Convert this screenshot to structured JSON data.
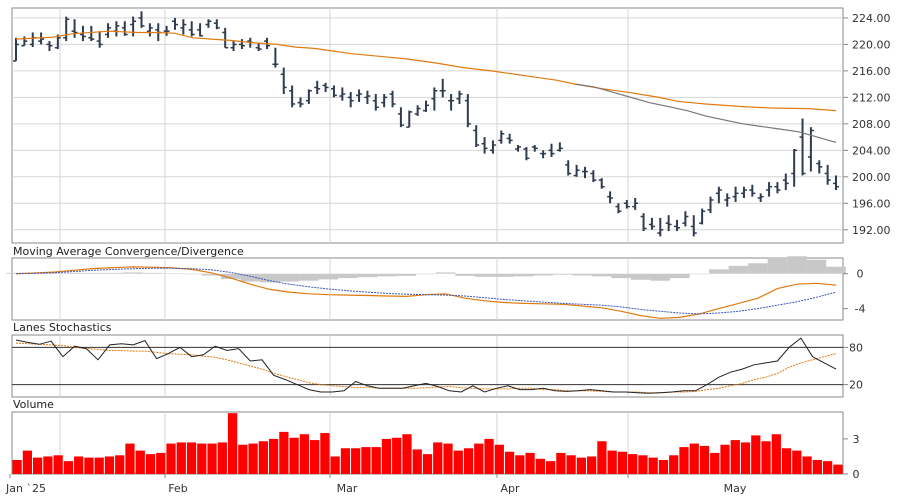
{
  "colors": {
    "price_bar": "#2f3b4f",
    "ma_orange": "#e07a10",
    "ma_gray": "#777777",
    "macd_line": "#e07a10",
    "signal_line": "#3a56b5",
    "histogram": "#c8c8c8",
    "stoch_k": "#222222",
    "stoch_d": "#e07a10",
    "volume_bar": "#ff0000",
    "grid": "#d6d6d6",
    "axis": "#333333"
  },
  "chart_data": [
    {
      "panel": "price",
      "type": "ohlc",
      "title": "",
      "ylim": [
        190,
        225.5
      ],
      "ticks": [
        "224.00",
        "220.00",
        "216.00",
        "212.00",
        "208.00",
        "204.00",
        "200.00",
        "196.00",
        "192.00"
      ],
      "tick_values": [
        224,
        220,
        216,
        212,
        208,
        204,
        200,
        196,
        192
      ],
      "bars": [
        [
          217.5,
          221.0,
          217.5,
          220.0
        ],
        [
          219.8,
          221.2,
          219.8,
          220.5
        ],
        [
          220.0,
          221.8,
          219.6,
          221.0
        ],
        [
          220.5,
          221.8,
          220.0,
          220.8
        ],
        [
          220.0,
          220.5,
          219.0,
          219.8
        ],
        [
          219.5,
          221.5,
          219.3,
          221.0
        ],
        [
          221.0,
          224.2,
          220.5,
          223.8
        ],
        [
          222.0,
          223.8,
          221.0,
          221.8
        ],
        [
          221.5,
          222.8,
          220.5,
          221.2
        ],
        [
          221.0,
          222.8,
          220.5,
          220.8
        ],
        [
          220.5,
          222.0,
          219.5,
          220.0
        ],
        [
          221.5,
          223.2,
          221.0,
          222.5
        ],
        [
          222.0,
          223.5,
          221.2,
          222.8
        ],
        [
          222.5,
          223.5,
          221.3,
          221.5
        ],
        [
          223.0,
          224.2,
          221.2,
          223.5
        ],
        [
          224.0,
          225.0,
          222.5,
          222.8
        ],
        [
          222.0,
          223.2,
          221.2,
          222.5
        ],
        [
          222.2,
          223.2,
          220.5,
          221.8
        ],
        [
          222.0,
          222.8,
          221.3,
          222.0
        ],
        [
          223.5,
          224.0,
          222.2,
          223.0
        ],
        [
          222.5,
          223.8,
          221.5,
          223.0
        ],
        [
          222.2,
          223.5,
          221.2,
          221.5
        ],
        [
          222.2,
          223.2,
          221.2,
          221.3
        ],
        [
          223.0,
          223.8,
          222.5,
          223.5
        ],
        [
          223.2,
          223.8,
          222.3,
          222.5
        ],
        [
          221.8,
          222.5,
          219.5,
          219.5
        ],
        [
          219.5,
          220.5,
          219.0,
          220.0
        ],
        [
          220.0,
          220.8,
          219.3,
          219.8
        ],
        [
          220.5,
          221.0,
          219.5,
          220.3
        ],
        [
          219.5,
          220.2,
          219.0,
          219.3
        ],
        [
          220.5,
          221.0,
          219.3,
          219.8
        ],
        [
          217.0,
          219.5,
          216.5,
          217.0
        ],
        [
          215.5,
          216.5,
          212.5,
          213.5
        ],
        [
          213.0,
          213.8,
          210.5,
          211.0
        ],
        [
          211.2,
          212.0,
          210.5,
          211.0
        ],
        [
          211.5,
          213.2,
          211.0,
          213.0
        ],
        [
          213.5,
          214.5,
          212.5,
          213.3
        ],
        [
          213.8,
          214.2,
          212.8,
          213.5
        ],
        [
          213.3,
          213.8,
          212.0,
          212.3
        ],
        [
          212.2,
          213.5,
          211.5,
          212.5
        ],
        [
          212.0,
          212.8,
          210.5,
          211.5
        ],
        [
          212.3,
          213.2,
          211.3,
          212.5
        ],
        [
          212.0,
          213.0,
          211.0,
          212.2
        ],
        [
          211.5,
          212.5,
          210.0,
          210.5
        ],
        [
          211.2,
          212.5,
          210.5,
          212.0
        ],
        [
          212.5,
          213.0,
          210.5,
          211.0
        ],
        [
          209.5,
          210.5,
          207.5,
          207.8
        ],
        [
          207.5,
          210.0,
          207.5,
          209.8
        ],
        [
          209.5,
          210.8,
          209.2,
          210.3
        ],
        [
          210.0,
          211.5,
          209.8,
          210.8
        ],
        [
          211.8,
          213.5,
          210.0,
          213.0
        ],
        [
          213.0,
          214.8,
          212.0,
          213.0
        ],
        [
          211.5,
          212.5,
          210.0,
          211.5
        ],
        [
          211.8,
          213.0,
          211.0,
          212.5
        ],
        [
          211.5,
          212.5,
          207.5,
          208.0
        ],
        [
          207.0,
          207.8,
          204.5,
          204.8
        ],
        [
          205.0,
          206.0,
          203.5,
          204.3
        ],
        [
          204.0,
          205.5,
          203.5,
          204.8
        ],
        [
          205.5,
          207.0,
          205.0,
          206.5
        ],
        [
          205.8,
          206.5,
          205.0,
          205.5
        ],
        [
          204.2,
          204.8,
          203.8,
          204.5
        ],
        [
          204.2,
          204.5,
          202.5,
          202.8
        ],
        [
          204.5,
          204.8,
          203.8,
          204.3
        ],
        [
          203.5,
          204.0,
          202.8,
          203.5
        ],
        [
          204.0,
          205.0,
          203.0,
          203.5
        ],
        [
          204.0,
          205.2,
          203.8,
          204.3
        ],
        [
          201.8,
          202.5,
          200.2,
          200.5
        ],
        [
          200.2,
          201.8,
          200.0,
          201.0
        ],
        [
          200.8,
          201.5,
          199.8,
          200.8
        ],
        [
          200.5,
          201.0,
          199.2,
          199.5
        ],
        [
          199.5,
          199.8,
          198.2,
          198.5
        ],
        [
          197.0,
          197.8,
          196.0,
          196.8
        ],
        [
          195.5,
          196.0,
          194.5,
          194.8
        ],
        [
          196.0,
          196.5,
          195.2,
          195.5
        ],
        [
          195.5,
          196.8,
          195.0,
          196.0
        ],
        [
          194.0,
          194.5,
          191.8,
          192.2
        ],
        [
          192.8,
          193.8,
          192.0,
          192.5
        ],
        [
          191.5,
          193.8,
          191.0,
          192.0
        ],
        [
          193.0,
          194.2,
          191.8,
          192.8
        ],
        [
          192.5,
          193.5,
          191.8,
          192.3
        ],
        [
          193.0,
          194.8,
          192.5,
          194.0
        ],
        [
          192.5,
          194.2,
          191.0,
          191.5
        ],
        [
          193.0,
          195.2,
          192.8,
          194.8
        ],
        [
          195.0,
          197.0,
          194.5,
          196.5
        ],
        [
          197.5,
          198.5,
          196.0,
          198.0
        ],
        [
          196.5,
          197.5,
          195.5,
          196.8
        ],
        [
          197.0,
          198.5,
          196.2,
          197.5
        ],
        [
          197.5,
          198.5,
          196.8,
          198.0
        ],
        [
          198.0,
          198.8,
          197.0,
          197.5
        ],
        [
          196.8,
          197.5,
          196.2,
          197.0
        ],
        [
          198.0,
          199.2,
          197.0,
          198.5
        ],
        [
          198.5,
          199.2,
          197.5,
          198.0
        ],
        [
          199.5,
          200.5,
          198.0,
          199.0
        ],
        [
          200.5,
          204.2,
          198.5,
          204.0
        ],
        [
          206.0,
          208.8,
          200.2,
          200.5
        ],
        [
          203.0,
          207.5,
          200.8,
          207.0
        ],
        [
          202.0,
          202.5,
          200.5,
          201.5
        ],
        [
          200.5,
          201.8,
          198.8,
          199.5
        ],
        [
          199.0,
          200.2,
          198.0,
          198.5
        ]
      ],
      "ma_orange": [
        [
          0,
          220.8
        ],
        [
          0.08,
          221.1
        ],
        [
          0.12,
          221.6
        ],
        [
          0.2,
          222.0
        ],
        [
          0.26,
          221.8
        ],
        [
          0.3,
          221.8
        ],
        [
          0.34,
          221.7
        ],
        [
          0.38,
          221.0
        ],
        [
          0.42,
          220.8
        ],
        [
          0.46,
          220.6
        ],
        [
          0.5,
          220.3
        ],
        [
          0.56,
          220.0
        ],
        [
          0.6,
          219.6
        ],
        [
          0.64,
          219.4
        ],
        [
          0.68,
          219.0
        ],
        [
          0.72,
          218.6
        ],
        [
          0.78,
          218.2
        ],
        [
          0.84,
          217.8
        ],
        [
          0.9,
          217.2
        ],
        [
          0.96,
          216.5
        ],
        [
          1.02,
          216.0
        ],
        [
          1.1,
          215.2
        ],
        [
          1.16,
          214.6
        ],
        [
          1.2,
          214.0
        ],
        [
          1.26,
          213.3
        ],
        [
          1.32,
          212.7
        ],
        [
          1.38,
          212.0
        ],
        [
          1.42,
          211.4
        ],
        [
          1.48,
          211.0
        ],
        [
          1.56,
          210.6
        ],
        [
          1.62,
          210.4
        ],
        [
          1.7,
          210.3
        ],
        [
          1.76,
          210.0
        ]
      ],
      "ma_gray": [
        [
          1.2,
          214.0
        ],
        [
          1.24,
          213.6
        ],
        [
          1.28,
          212.8
        ],
        [
          1.32,
          212.0
        ],
        [
          1.36,
          211.2
        ],
        [
          1.4,
          210.6
        ],
        [
          1.44,
          210.0
        ],
        [
          1.48,
          209.2
        ],
        [
          1.52,
          208.6
        ],
        [
          1.56,
          208.0
        ],
        [
          1.6,
          207.6
        ],
        [
          1.64,
          207.2
        ],
        [
          1.68,
          206.8
        ],
        [
          1.72,
          206.0
        ],
        [
          1.76,
          205.2
        ]
      ]
    },
    {
      "panel": "macd",
      "type": "line",
      "title": "Moving Average Convergence/Divergence",
      "ticks": [
        "0",
        "-4"
      ],
      "tick_values": [
        0,
        -4
      ],
      "ylim": [
        -5.3,
        1.8
      ],
      "series": [
        {
          "values": [
            0,
            0.08,
            0.2,
            0.4,
            0.6,
            0.7,
            0.78,
            0.75,
            0.68,
            0.5,
            0.1,
            -0.5,
            -1.2,
            -1.8,
            -2.1,
            -2.3,
            -2.4,
            -2.45,
            -2.5,
            -2.55,
            -2.6,
            -2.4,
            -2.3,
            -2.8,
            -3.1,
            -3.3,
            -3.4,
            -3.45,
            -3.5,
            -3.7,
            -3.9,
            -4.3,
            -4.8,
            -5.1,
            -5.0,
            -4.6,
            -4.0,
            -3.4,
            -2.8,
            -1.7,
            -1.2,
            -1.1,
            -1.3
          ]
        },
        {
          "values": [
            0,
            0.05,
            0.12,
            0.25,
            0.4,
            0.5,
            0.58,
            0.62,
            0.62,
            0.58,
            0.45,
            0.15,
            -0.3,
            -0.8,
            -1.2,
            -1.5,
            -1.75,
            -1.95,
            -2.1,
            -2.25,
            -2.35,
            -2.4,
            -2.45,
            -2.55,
            -2.75,
            -2.95,
            -3.1,
            -3.25,
            -3.4,
            -3.5,
            -3.6,
            -3.8,
            -4.1,
            -4.3,
            -4.5,
            -4.6,
            -4.5,
            -4.3,
            -4.0,
            -3.6,
            -3.2,
            -2.7,
            -2.1
          ]
        }
      ],
      "histogram": [
        0.1,
        0.1,
        0.1,
        0.1,
        0.1,
        0.1,
        0.15,
        0.1,
        0.05,
        0.0,
        -0.2,
        -0.6,
        -0.9,
        -1.0,
        -0.9,
        -0.8,
        -0.65,
        -0.5,
        -0.4,
        -0.3,
        -0.25,
        0.0,
        0.15,
        -0.25,
        -0.35,
        -0.35,
        -0.3,
        -0.2,
        -0.1,
        -0.2,
        -0.3,
        -0.5,
        -0.7,
        -0.8,
        -0.5,
        0.0,
        0.5,
        0.9,
        1.2,
        1.9,
        2.0,
        1.6,
        0.8
      ]
    },
    {
      "panel": "stochastics",
      "type": "line",
      "title": "Lanes Stochastics",
      "ticks": [
        "80",
        "20"
      ],
      "tick_values": [
        80,
        20
      ],
      "ylim": [
        0,
        100
      ],
      "series": [
        {
          "values": [
            92,
            88,
            85,
            90,
            65,
            82,
            78,
            60,
            84,
            86,
            84,
            91,
            62,
            70,
            80,
            65,
            68,
            82,
            75,
            78,
            58,
            60,
            35,
            28,
            20,
            12,
            8,
            8,
            10,
            25,
            18,
            14,
            14,
            14,
            18,
            22,
            17,
            10,
            8,
            18,
            8,
            14,
            18,
            12,
            12,
            14,
            10,
            9,
            10,
            12,
            10,
            8,
            8,
            7,
            6,
            7,
            8,
            10,
            10,
            20,
            32,
            40,
            45,
            52,
            55,
            58,
            80,
            95,
            65,
            55,
            45
          ]
        },
        {
          "values": [
            87,
            86,
            85,
            84,
            83,
            80,
            78,
            77,
            75,
            75,
            74,
            74,
            72,
            70,
            69,
            68,
            66,
            64,
            60,
            55,
            50,
            45,
            38,
            33,
            28,
            23,
            20,
            18,
            17,
            15,
            16,
            14,
            14,
            14,
            14,
            15,
            16,
            17,
            15,
            14,
            13,
            13,
            13,
            14,
            14,
            12,
            12,
            10,
            10,
            10,
            9,
            8,
            8,
            8,
            7,
            7,
            8,
            8,
            9,
            12,
            14,
            18,
            22,
            28,
            32,
            38,
            48,
            55,
            60,
            65,
            70
          ]
        }
      ]
    },
    {
      "panel": "volume",
      "type": "bar",
      "title": "Volume",
      "ticks": [
        "3",
        "0"
      ],
      "tick_values": [
        3,
        0
      ],
      "ylim": [
        0,
        5.3
      ],
      "values": [
        1.2,
        2.0,
        1.4,
        1.5,
        1.6,
        1.1,
        1.5,
        1.4,
        1.4,
        1.5,
        1.6,
        2.6,
        2.0,
        1.7,
        1.8,
        2.6,
        2.7,
        2.7,
        2.6,
        2.6,
        2.7,
        5.2,
        2.5,
        2.6,
        2.8,
        3.0,
        3.6,
        3.1,
        3.4,
        2.9,
        3.5,
        1.5,
        2.2,
        2.2,
        2.3,
        2.3,
        3.0,
        3.1,
        3.4,
        2.1,
        1.7,
        2.7,
        2.6,
        2.0,
        2.2,
        2.6,
        3.0,
        2.5,
        1.9,
        1.6,
        1.8,
        1.3,
        1.1,
        1.8,
        1.6,
        1.4,
        1.5,
        2.8,
        2.0,
        1.9,
        1.7,
        1.6,
        1.4,
        1.2,
        1.6,
        2.3,
        2.6,
        2.4,
        1.8,
        2.5,
        2.9,
        2.7,
        3.3,
        2.8,
        3.4,
        2.2,
        2.0,
        1.5,
        1.2,
        1.1,
        0.8
      ]
    }
  ],
  "x_axis": {
    "labels": [
      "Jan `25",
      "Feb",
      "Mar",
      "Apr",
      "May"
    ],
    "label_index": [
      0,
      21,
      40,
      61,
      83
    ]
  }
}
